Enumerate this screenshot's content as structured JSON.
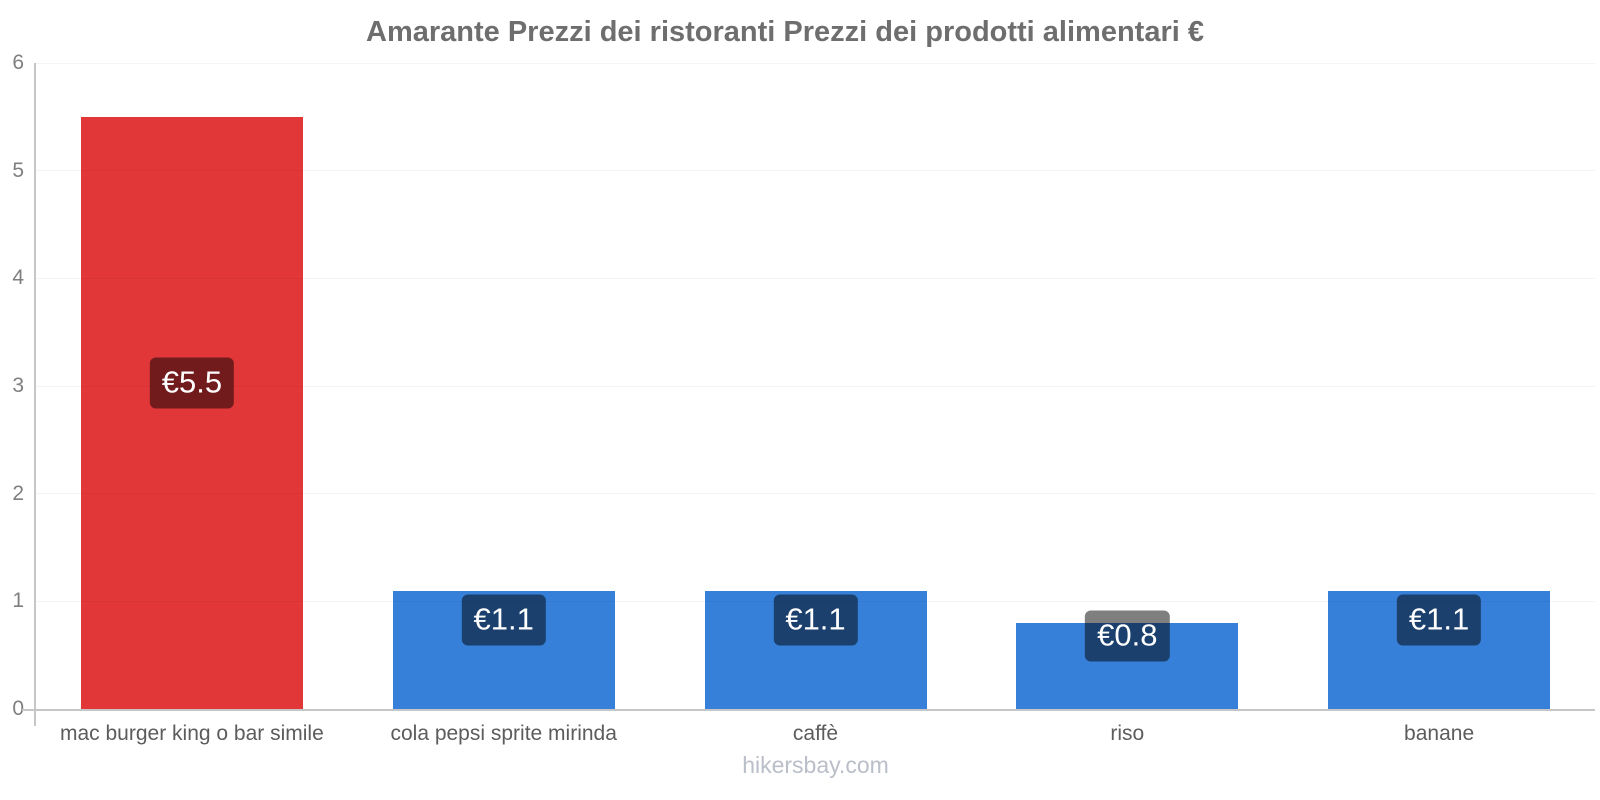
{
  "chart_data": {
    "type": "bar",
    "title": "Amarante Prezzi dei ristoranti Prezzi dei prodotti alimentari €",
    "categories": [
      "mac burger king o bar simile",
      "cola pepsi sprite mirinda",
      "caffè",
      "riso",
      "banane"
    ],
    "values": [
      5.5,
      1.1,
      1.1,
      0.8,
      1.1
    ],
    "value_labels": [
      "€5.5",
      "€1.1",
      "€1.1",
      "€0.8",
      "€1.1"
    ],
    "bar_colors": [
      "#e23739",
      "#3680da",
      "#3680da",
      "#3680da",
      "#3680da"
    ],
    "currency": "€",
    "xlabel": "",
    "ylabel": "",
    "ylim": [
      0,
      6
    ],
    "yticks": [
      0,
      1,
      2,
      3,
      4,
      5,
      6
    ],
    "grid": true,
    "legend_position": "none",
    "value_label_bg": "rgba(0,0,0,0.5)",
    "value_label_color": "#ffffff"
  },
  "footer": {
    "text": "hikersbay.com"
  }
}
